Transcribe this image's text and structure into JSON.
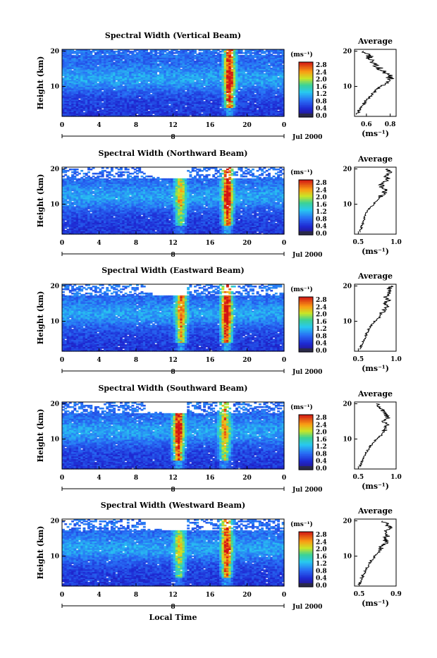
{
  "chart_data": [
    {
      "type": "heatmap",
      "title": "Spectral Width (Vertical Beam)",
      "ylabel": "Height (km)",
      "xlabel": "",
      "x_ticks": [
        "0",
        "4",
        "8",
        "12",
        "16",
        "20",
        "0"
      ],
      "y_ticks": [
        "20",
        "10"
      ],
      "xlim": [
        0,
        24
      ],
      "ylim": [
        1.5,
        20.5
      ],
      "date_marker": "8",
      "date_label": "Jul 2000",
      "colorbar": {
        "unit": "(ms⁻¹)",
        "ticks": [
          "2.8",
          "2.4",
          "2.0",
          "1.6",
          "1.2",
          "0.8",
          "0.4",
          "0.0"
        ]
      },
      "turbulence_bands": [
        {
          "center_hour": 18.1,
          "intensity": 1.0
        }
      ],
      "average_profile": {
        "title": "Average",
        "xlabel": "(ms⁻¹)",
        "x_ticks": [
          "0.6",
          "0.8"
        ],
        "xlim": [
          0.5,
          0.85
        ],
        "height_km": [
          2,
          4,
          6,
          8,
          10,
          11,
          12,
          13,
          14,
          15,
          16,
          17,
          18,
          19,
          20
        ],
        "width": [
          0.52,
          0.55,
          0.6,
          0.65,
          0.72,
          0.78,
          0.79,
          0.8,
          0.74,
          0.72,
          0.68,
          0.66,
          0.62,
          0.63,
          0.58
        ]
      }
    },
    {
      "type": "heatmap",
      "title": "Spectral Width (Northward Beam)",
      "ylabel": "Height (km)",
      "xlabel": "",
      "x_ticks": [
        "0",
        "4",
        "8",
        "12",
        "16",
        "20",
        "0"
      ],
      "y_ticks": [
        "20",
        "10"
      ],
      "xlim": [
        0,
        24
      ],
      "ylim": [
        1.5,
        20.5
      ],
      "date_marker": "8",
      "date_label": "Jul 2000",
      "colorbar": {
        "unit": "(ms⁻¹)",
        "ticks": [
          "2.8",
          "2.4",
          "2.0",
          "1.6",
          "1.2",
          "0.8",
          "0.4",
          "0.0"
        ]
      },
      "turbulence_bands": [
        {
          "center_hour": 12.8,
          "intensity": 0.6
        },
        {
          "center_hour": 17.9,
          "intensity": 1.0
        }
      ],
      "average_profile": {
        "title": "Average",
        "xlabel": "(ms⁻¹)",
        "x_ticks": [
          "0.5",
          "1.0"
        ],
        "xlim": [
          0.45,
          1.0
        ],
        "height_km": [
          2,
          4,
          6,
          8,
          10,
          11,
          12,
          13,
          14,
          15,
          16,
          17,
          18,
          19,
          20
        ],
        "width": [
          0.52,
          0.55,
          0.58,
          0.62,
          0.7,
          0.75,
          0.78,
          0.84,
          0.86,
          0.8,
          0.82,
          0.9,
          0.86,
          0.92,
          0.88
        ]
      }
    },
    {
      "type": "heatmap",
      "title": "Spectral Width (Eastward Beam)",
      "ylabel": "Height (km)",
      "xlabel": "",
      "x_ticks": [
        "0",
        "4",
        "8",
        "12",
        "16",
        "20",
        "0"
      ],
      "y_ticks": [
        "20",
        "10"
      ],
      "xlim": [
        0,
        24
      ],
      "ylim": [
        1.5,
        20.5
      ],
      "date_marker": "8",
      "date_label": "Jul 2000",
      "colorbar": {
        "unit": "(ms⁻¹)",
        "ticks": [
          "2.8",
          "2.4",
          "2.0",
          "1.6",
          "1.2",
          "0.8",
          "0.4",
          "0.0"
        ]
      },
      "turbulence_bands": [
        {
          "center_hour": 12.9,
          "intensity": 0.75
        },
        {
          "center_hour": 17.8,
          "intensity": 1.0
        }
      ],
      "average_profile": {
        "title": "Average",
        "xlabel": "(ms⁻¹)",
        "x_ticks": [
          "0.5",
          "1.0"
        ],
        "xlim": [
          0.45,
          1.0
        ],
        "height_km": [
          2,
          4,
          6,
          8,
          10,
          11,
          12,
          13,
          14,
          15,
          16,
          17,
          18,
          19,
          20
        ],
        "width": [
          0.52,
          0.56,
          0.6,
          0.64,
          0.72,
          0.78,
          0.8,
          0.84,
          0.88,
          0.84,
          0.9,
          0.86,
          0.92,
          0.9,
          0.94
        ]
      }
    },
    {
      "type": "heatmap",
      "title": "Spectral Width (Southward Beam)",
      "ylabel": "Height (km)",
      "xlabel": "",
      "x_ticks": [
        "0",
        "4",
        "8",
        "12",
        "16",
        "20",
        "0"
      ],
      "y_ticks": [
        "20",
        "10"
      ],
      "xlim": [
        0,
        24
      ],
      "ylim": [
        1.5,
        20.5
      ],
      "date_marker": "8",
      "date_label": "Jul 2000",
      "colorbar": {
        "unit": "(ms⁻¹)",
        "ticks": [
          "2.8",
          "2.4",
          "2.0",
          "1.6",
          "1.2",
          "0.8",
          "0.4",
          "0.0"
        ]
      },
      "turbulence_bands": [
        {
          "center_hour": 12.6,
          "intensity": 1.0
        },
        {
          "center_hour": 17.6,
          "intensity": 0.7
        }
      ],
      "average_profile": {
        "title": "Average",
        "xlabel": "(ms⁻¹)",
        "x_ticks": [
          "0.5",
          "1.0"
        ],
        "xlim": [
          0.45,
          1.0
        ],
        "height_km": [
          2,
          4,
          6,
          8,
          10,
          11,
          12,
          13,
          14,
          15,
          16,
          17,
          18,
          19,
          20
        ],
        "width": [
          0.52,
          0.55,
          0.6,
          0.66,
          0.74,
          0.8,
          0.84,
          0.86,
          0.88,
          0.84,
          0.9,
          0.86,
          0.82,
          0.78,
          0.74
        ]
      }
    },
    {
      "type": "heatmap",
      "title": "Spectral Width (Westward Beam)",
      "ylabel": "Height (km)",
      "xlabel": "Local Time",
      "x_ticks": [
        "0",
        "4",
        "8",
        "12",
        "16",
        "20",
        "0"
      ],
      "y_ticks": [
        "20",
        "10"
      ],
      "xlim": [
        0,
        24
      ],
      "ylim": [
        1.5,
        20.5
      ],
      "date_marker": "8",
      "date_label": "Jul 2000",
      "colorbar": {
        "unit": "(ms⁻¹)",
        "ticks": [
          "2.8",
          "2.4",
          "2.0",
          "1.6",
          "1.2",
          "0.8",
          "0.4",
          "0.0"
        ]
      },
      "turbulence_bands": [
        {
          "center_hour": 12.7,
          "intensity": 0.55
        },
        {
          "center_hour": 17.8,
          "intensity": 0.9
        }
      ],
      "average_profile": {
        "title": "Average",
        "xlabel": "(ms⁻¹)",
        "x_ticks": [
          "0.5",
          "0.9"
        ],
        "xlim": [
          0.45,
          0.9
        ],
        "height_km": [
          2,
          4,
          6,
          8,
          10,
          11,
          12,
          13,
          14,
          15,
          16,
          17,
          18,
          19,
          20
        ],
        "width": [
          0.5,
          0.53,
          0.57,
          0.61,
          0.67,
          0.71,
          0.74,
          0.76,
          0.8,
          0.78,
          0.82,
          0.78,
          0.84,
          0.8,
          0.76
        ]
      }
    }
  ]
}
